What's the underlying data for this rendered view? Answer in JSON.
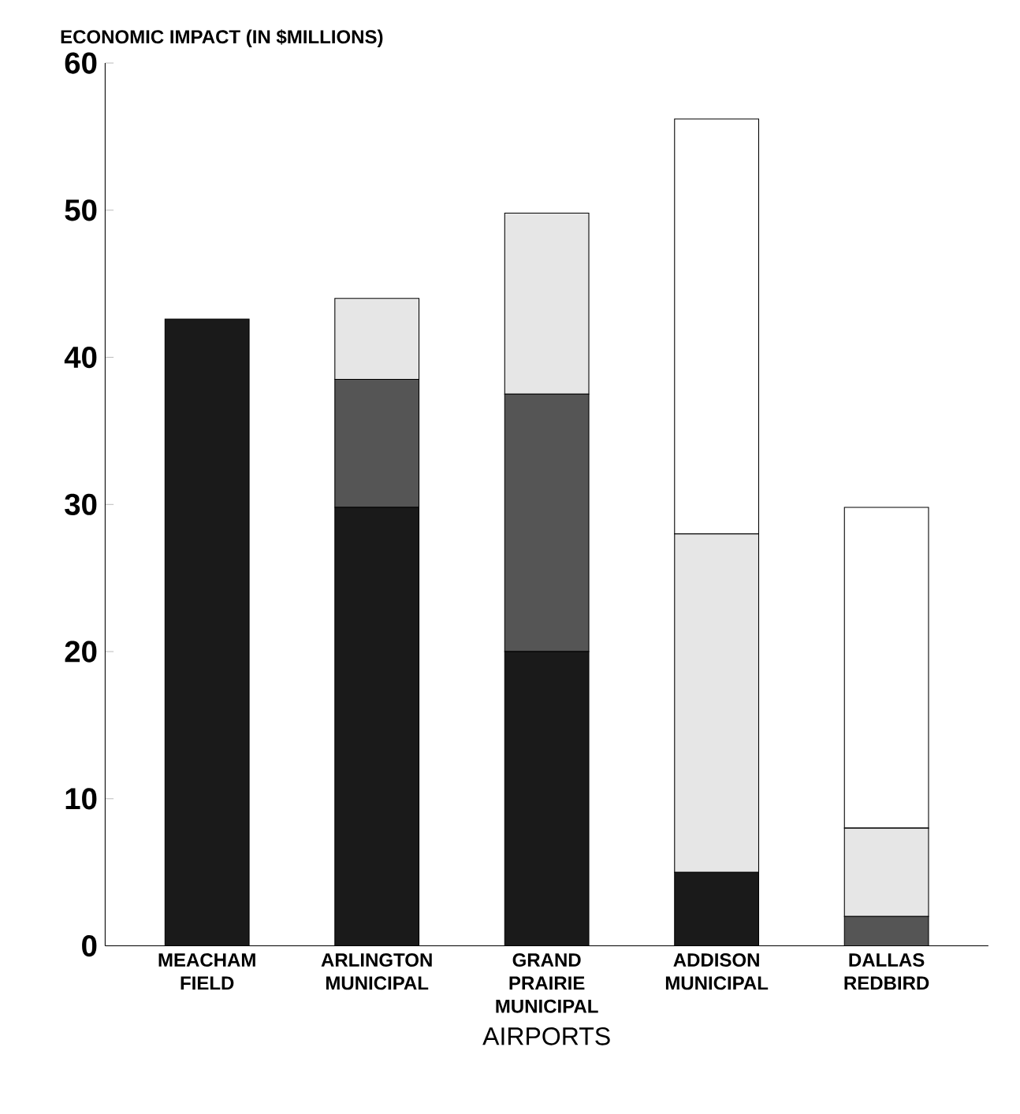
{
  "chart_data": {
    "type": "bar",
    "stacked": true,
    "ylabel": "ECONOMIC IMPACT (IN $MILLIONS)",
    "xlabel": "AIRPORTS",
    "categories": [
      "MEACHAM FIELD",
      "ARLINGTON MUNICIPAL",
      "GRAND PRAIRIE MUNICIPAL",
      "ADDISON MUNICIPAL",
      "DALLAS REDBIRD"
    ],
    "series": [
      {
        "color": "#1a1a1a",
        "values": [
          42.6,
          29.8,
          20,
          5,
          0
        ]
      },
      {
        "color": "#555555",
        "values": [
          0,
          8.7,
          17.5,
          0,
          2
        ]
      },
      {
        "color": "#e6e6e6",
        "values": [
          0,
          5.5,
          12.3,
          23,
          6
        ]
      },
      {
        "color": "#ffffff",
        "values": [
          0,
          0,
          0,
          28.2,
          21.8
        ]
      }
    ],
    "ylim": [
      0,
      60
    ],
    "yticks": [
      0,
      10,
      20,
      30,
      40,
      50,
      60
    ],
    "grid": false
  }
}
